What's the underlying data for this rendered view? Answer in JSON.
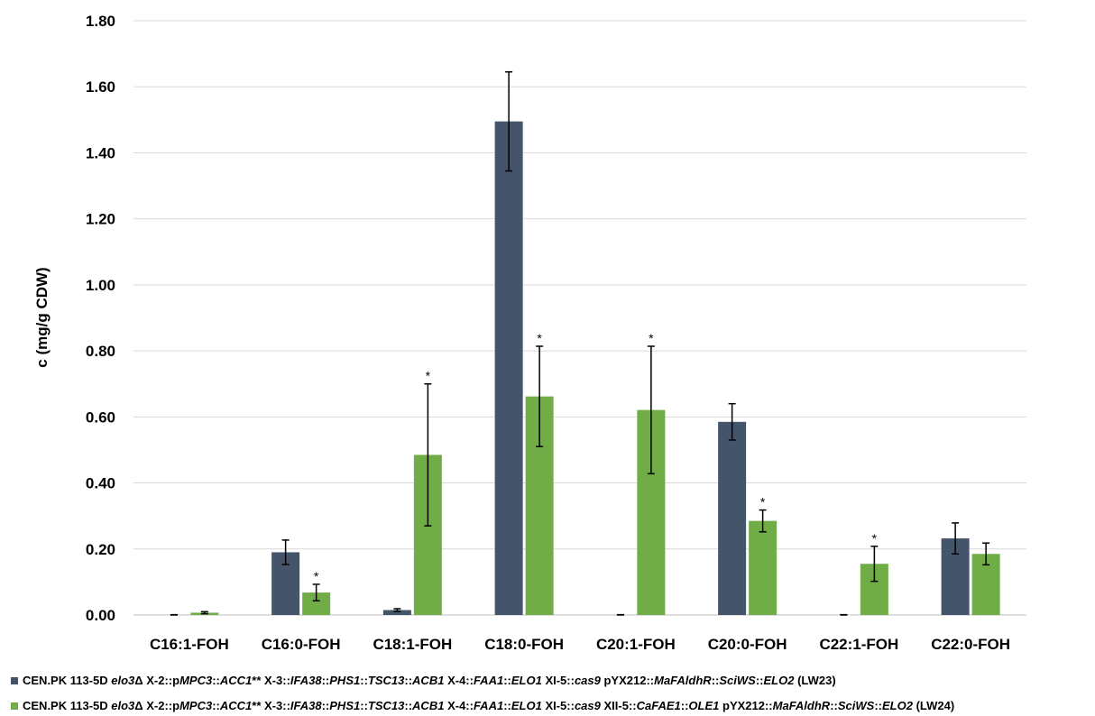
{
  "chart_data": {
    "type": "bar",
    "ylabel": "c (mg/g CDW)",
    "ylim": [
      0,
      1.8
    ],
    "yticks": [
      "0.00",
      "0.20",
      "0.40",
      "0.60",
      "0.80",
      "1.00",
      "1.20",
      "1.40",
      "1.60",
      "1.80"
    ],
    "grid": true,
    "legend_position": "bottom",
    "categories": [
      "C16:1-FOH",
      "C16:0-FOH",
      "C18:1-FOH",
      "C18:0-FOH",
      "C20:1-FOH",
      "C20:0-FOH",
      "C22:1-FOH",
      "C22:0-FOH"
    ],
    "series": [
      {
        "name": "CEN.PK 113-5D elo3Δ X-2::pMPC3::ACC1** X-3::IFA38::PHS1::TSC13::ACB1 X-4::FAA1::ELO1 XI-5::cas9 pYX212::MaFAldhR::SciWS::ELO2 (LW23)",
        "color": "#44546a",
        "values": [
          0.0,
          0.19,
          0.015,
          1.495,
          0.0,
          0.585,
          0.0,
          0.232
        ],
        "errors": [
          0.001,
          0.037,
          0.004,
          0.15,
          0.001,
          0.055,
          0.001,
          0.047
        ],
        "significance": [
          "",
          "",
          "",
          "",
          "",
          "",
          "",
          ""
        ]
      },
      {
        "name": "CEN.PK 113-5D elo3Δ X-2::pMPC3::ACC1** X-3::IFA38::PHS1::TSC13::ACB1 X-4::FAA1::ELO1 XI-5::cas9 XII-5::CaFAE1::OLE1 pYX212::MaFAldhR::SciWS::ELO2 (LW24)",
        "color": "#70ad47",
        "values": [
          0.007,
          0.068,
          0.485,
          0.662,
          0.621,
          0.285,
          0.155,
          0.185
        ],
        "errors": [
          0.003,
          0.025,
          0.215,
          0.152,
          0.193,
          0.033,
          0.053,
          0.033
        ],
        "significance": [
          "",
          "*",
          "*",
          "*",
          "*",
          "*",
          "*",
          ""
        ]
      }
    ]
  },
  "legend": {
    "items": [
      {
        "color": "#44546a",
        "parts": [
          {
            "t": "CEN.PK 113-5D ",
            "i": false
          },
          {
            "t": "elo3",
            "i": true
          },
          {
            "t": "Δ X-2::p",
            "i": false
          },
          {
            "t": "MPC3",
            "i": true
          },
          {
            "t": "::",
            "i": false
          },
          {
            "t": "ACC1",
            "i": true
          },
          {
            "t": "** X-3::",
            "i": false
          },
          {
            "t": "IFA38",
            "i": true
          },
          {
            "t": "::",
            "i": false
          },
          {
            "t": "PHS1",
            "i": true
          },
          {
            "t": "::",
            "i": false
          },
          {
            "t": "TSC13",
            "i": true
          },
          {
            "t": "::",
            "i": false
          },
          {
            "t": "ACB1",
            "i": true
          },
          {
            "t": " X-4::",
            "i": false
          },
          {
            "t": "FAA1",
            "i": true
          },
          {
            "t": "::",
            "i": false
          },
          {
            "t": "ELO1",
            "i": true
          },
          {
            "t": " XI-5::",
            "i": false
          },
          {
            "t": "cas9",
            "i": true
          },
          {
            "t": " pYX212::",
            "i": false
          },
          {
            "t": "MaFAldhR",
            "i": true
          },
          {
            "t": "::",
            "i": false
          },
          {
            "t": "SciWS",
            "i": true
          },
          {
            "t": "::",
            "i": false
          },
          {
            "t": "ELO2",
            "i": true
          },
          {
            "t": " (LW23)",
            "i": false
          }
        ]
      },
      {
        "color": "#70ad47",
        "parts": [
          {
            "t": "CEN.PK 113-5D ",
            "i": false
          },
          {
            "t": "elo3",
            "i": true
          },
          {
            "t": "Δ X-2::p",
            "i": false
          },
          {
            "t": "MPC3",
            "i": true
          },
          {
            "t": "::",
            "i": false
          },
          {
            "t": "ACC1",
            "i": true
          },
          {
            "t": "** X-3::",
            "i": false
          },
          {
            "t": "IFA38",
            "i": true
          },
          {
            "t": "::",
            "i": false
          },
          {
            "t": "PHS1",
            "i": true
          },
          {
            "t": "::",
            "i": false
          },
          {
            "t": "TSC13",
            "i": true
          },
          {
            "t": "::",
            "i": false
          },
          {
            "t": "ACB1",
            "i": true
          },
          {
            "t": " X-4::",
            "i": false
          },
          {
            "t": "FAA1",
            "i": true
          },
          {
            "t": "::",
            "i": false
          },
          {
            "t": "ELO1",
            "i": true
          },
          {
            "t": " XI-5::",
            "i": false
          },
          {
            "t": "cas9",
            "i": true
          },
          {
            "t": " XII-5::",
            "i": false
          },
          {
            "t": "CaFAE1",
            "i": true
          },
          {
            "t": "::",
            "i": false
          },
          {
            "t": "OLE1",
            "i": true
          },
          {
            "t": " pYX212::",
            "i": false
          },
          {
            "t": "MaFAldhR",
            "i": true
          },
          {
            "t": "::",
            "i": false
          },
          {
            "t": "SciWS",
            "i": true
          },
          {
            "t": "::",
            "i": false
          },
          {
            "t": "ELO2",
            "i": true
          },
          {
            "t": " (LW24)",
            "i": false
          }
        ]
      }
    ]
  }
}
